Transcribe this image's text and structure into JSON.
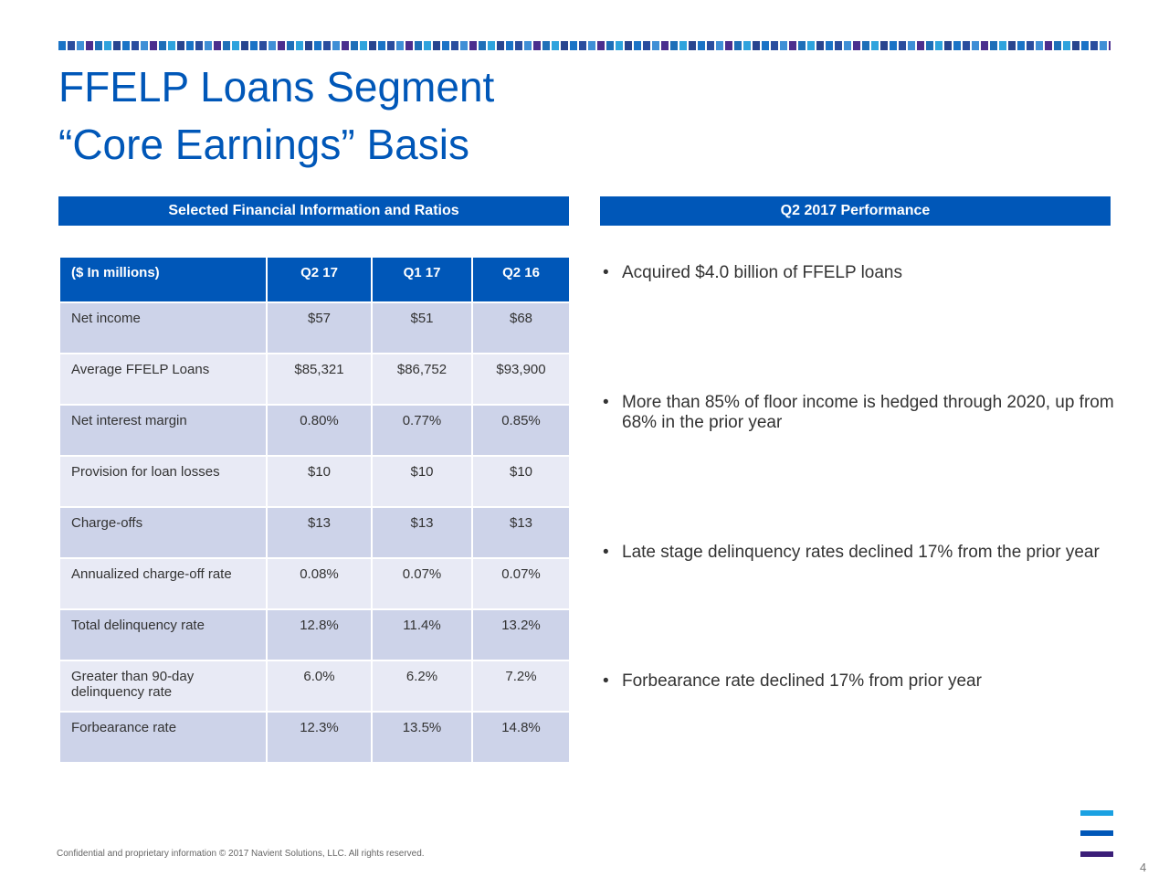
{
  "title": {
    "line1": "FFELP Loans Segment",
    "line2": "“Core Earnings” Basis"
  },
  "left_header": "Selected Financial Information and Ratios",
  "right_header": "Q2 2017 Performance",
  "table": {
    "columns": [
      "($ In millions)",
      "Q2 17",
      "Q1 17",
      "Q2 16"
    ],
    "rows": [
      {
        "label": "Net income",
        "q2_17": "$57",
        "q1_17": "$51",
        "q2_16": "$68"
      },
      {
        "label": "Average FFELP Loans",
        "q2_17": "$85,321",
        "q1_17": "$86,752",
        "q2_16": "$93,900"
      },
      {
        "label": "Net interest margin",
        "q2_17": "0.80%",
        "q1_17": "0.77%",
        "q2_16": "0.85%"
      },
      {
        "label": "Provision for loan losses",
        "q2_17": "$10",
        "q1_17": "$10",
        "q2_16": "$10"
      },
      {
        "label": "Charge-offs",
        "q2_17": "$13",
        "q1_17": "$13",
        "q2_16": "$13"
      },
      {
        "label": "Annualized charge-off rate",
        "q2_17": "0.08%",
        "q1_17": "0.07%",
        "q2_16": "0.07%"
      },
      {
        "label": "Total delinquency rate",
        "q2_17": "12.8%",
        "q1_17": "11.4%",
        "q2_16": "13.2%"
      },
      {
        "label": "Greater than 90-day delinquency rate",
        "q2_17": "6.0%",
        "q1_17": "6.2%",
        "q2_16": "7.2%"
      },
      {
        "label": "Forbearance rate",
        "q2_17": "12.3%",
        "q1_17": "13.5%",
        "q2_16": "14.8%"
      }
    ]
  },
  "bullet_symbol": "•",
  "bullets": [
    "Acquired $4.0 billion of FFELP loans",
    "More than 85% of floor income is hedged through 2020, up from 68% in the prior year",
    "Late stage delinquency rates declined 17% from the prior year",
    "Forbearance rate declined 17% from prior year"
  ],
  "footer": "Confidential and proprietary information  © 2017 Navient Solutions, LLC. All rights reserved.",
  "page_number": "4",
  "logo_colors": {
    "top": "#1ba1e2",
    "middle": "#0057b8",
    "bottom": "#3b1e78"
  },
  "accent_color": "#0057b8"
}
